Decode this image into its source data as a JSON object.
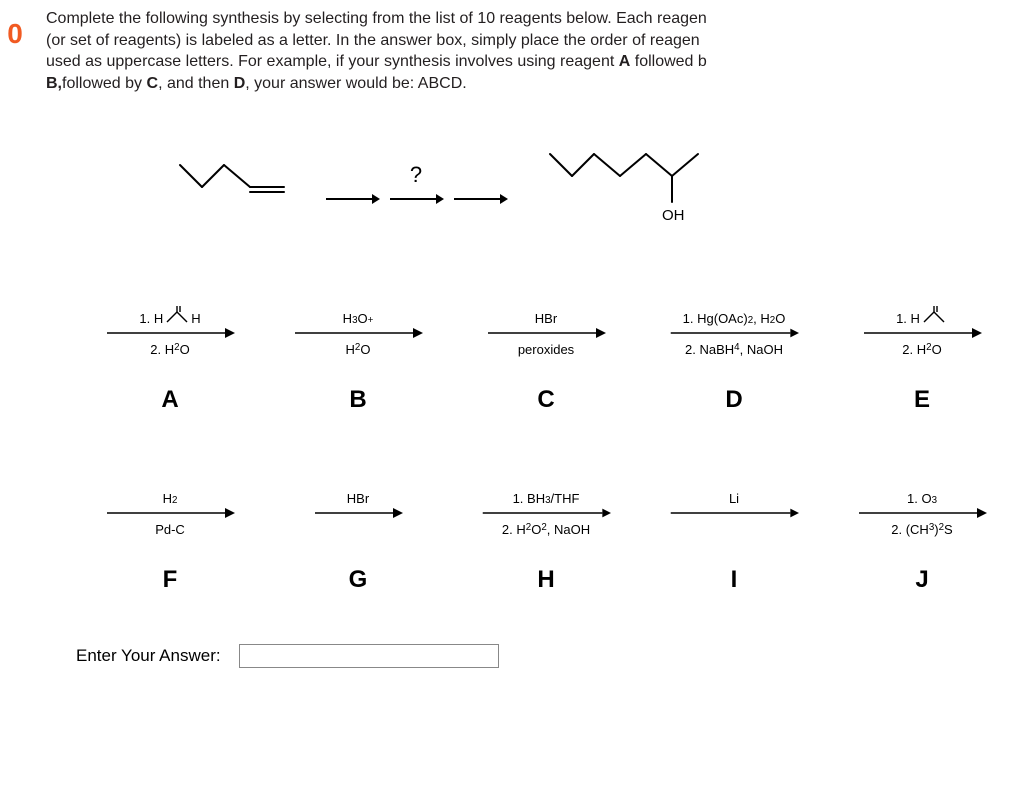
{
  "sidebar_number": "0",
  "question": {
    "line1_prefix": "Complete the following synthesis by selecting from the list of 10 reagents below. Each reagen",
    "line2": "(or set of reagents) is labeled as a letter. In the answer box, simply place the order of reagen",
    "line3_prefix": "used as uppercase letters. For example, if your synthesis involves using reagent ",
    "line3_boldA": "A",
    "line3_suffix": " followed b",
    "line4_prefix": "",
    "line4_boldB": "B,",
    "line4_mid": "followed by ",
    "line4_boldC": "C",
    "line4_mid2": ", and then ",
    "line4_boldD": "D",
    "line4_suffix": ", your answer would be: ABCD."
  },
  "scheme": {
    "arrow_qmark": "?",
    "product_oh_label": "OH"
  },
  "reagents": {
    "A": {
      "top_html": "1. H<span style='position:relative'><svg width='28' height='20' style='vertical-align:-4px'><line x1='4' y1='16' x2='14' y2='6' stroke='#000' stroke-width='1.4'/><line x1='14' y1='6' x2='24' y2='16' stroke='#000' stroke-width='1.4'/><line x1='14' y1='6' x2='14' y2='0' stroke='#000' stroke-width='1.4'/><line x1='17' y1='6' x2='17' y2='0' stroke='#000' stroke-width='1.4'/></svg></span>H",
      "bottom_html": "2. H<sub>2</sub>O",
      "label": "A",
      "arrow_w": 130
    },
    "B": {
      "top_html": "H<sub>3</sub>O<sup>+</sup>",
      "bottom_html": "H<sub>2</sub>O",
      "label": "B",
      "arrow_w": 130
    },
    "C": {
      "top_html": "HBr",
      "bottom_html": "peroxides",
      "label": "C",
      "arrow_w": 120
    },
    "D": {
      "top_html": "1. Hg(OAc)<sub>2</sub>, H<sub>2</sub>O",
      "bottom_html": "2. NaBH<sub>4</sub>, NaOH",
      "label": "D",
      "arrow_w": 150
    },
    "E": {
      "top_html": "1. H<span style='position:relative'><svg width='28' height='20' style='vertical-align:-4px'><line x1='4' y1='16' x2='14' y2='6' stroke='#000' stroke-width='1.4'/><line x1='14' y1='6' x2='24' y2='16' stroke='#000' stroke-width='1.4'/><line x1='14' y1='6' x2='14' y2='0' stroke='#000' stroke-width='1.4'/><line x1='17' y1='6' x2='17' y2='0' stroke='#000' stroke-width='1.4'/></svg></span>",
      "bottom_html": "2. H<sub>2</sub>O",
      "label": "E",
      "arrow_w": 120
    },
    "F": {
      "top_html": "H<sub>2</sub>",
      "bottom_html": "Pd-C",
      "label": "F",
      "arrow_w": 130
    },
    "G": {
      "top_html": "HBr",
      "bottom_html": "",
      "label": "G",
      "arrow_w": 90
    },
    "H": {
      "top_html": "1. BH<sub>3</sub>/THF",
      "bottom_html": "2. H<sub>2</sub>O<sub>2</sub>, NaOH",
      "label": "H",
      "arrow_w": 150
    },
    "I": {
      "top_html": "Li",
      "bottom_html": "",
      "label": "I",
      "arrow_w": 150
    },
    "J": {
      "top_html": "1. O<sub>3</sub>",
      "bottom_html": "2. (CH<sub>3</sub>)<sub>2</sub>S",
      "label": "J",
      "arrow_w": 130
    }
  },
  "answer_label": "Enter Your Answer:",
  "colors": {
    "accent": "#f15a22",
    "text": "#231f20",
    "bg": "#ffffff"
  }
}
